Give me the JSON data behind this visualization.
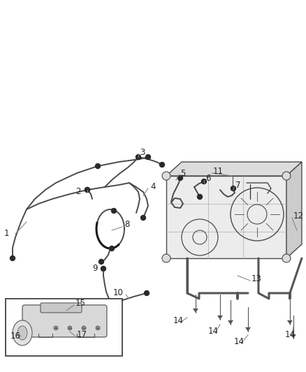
{
  "bg_color": "#ffffff",
  "fig_width": 4.38,
  "fig_height": 5.33,
  "dpi": 100,
  "line_color": "#4a4a4a",
  "label_color": "#222222",
  "label_fontsize": 8.5,
  "leader_color": "#888888",
  "tank_face_color": "#e8e8e8",
  "tank_top_color": "#d5d5d5",
  "tank_side_color": "#c8c8c8",
  "inset_bg": "#f8f8f8"
}
